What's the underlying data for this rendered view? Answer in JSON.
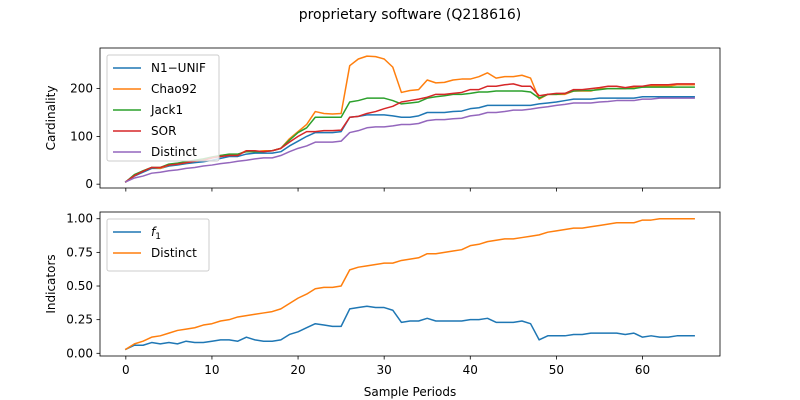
{
  "figure": {
    "title": "proprietary software (Q218616)",
    "xlabel": "Sample Periods"
  },
  "chart_data": [
    {
      "type": "line",
      "ylabel": "Cardinality",
      "xlim": [
        -3,
        69
      ],
      "ylim": [
        -8,
        285
      ],
      "xticks": [
        0,
        10,
        20,
        30,
        40,
        50,
        60
      ],
      "yticks": [
        0,
        100,
        200
      ],
      "ytick_labels": [
        "0",
        "100",
        "200"
      ],
      "show_xtick_labels": false,
      "legend": "upper-left",
      "series": [
        {
          "name": "N1−UNIF",
          "color": "#1f77b4",
          "x": [
            0,
            1,
            2,
            3,
            4,
            5,
            6,
            7,
            8,
            9,
            10,
            11,
            12,
            13,
            14,
            15,
            16,
            17,
            18,
            19,
            20,
            21,
            22,
            23,
            24,
            25,
            26,
            27,
            28,
            29,
            30,
            31,
            32,
            33,
            34,
            35,
            36,
            37,
            38,
            39,
            40,
            41,
            42,
            43,
            44,
            45,
            46,
            47,
            48,
            49,
            50,
            51,
            52,
            53,
            54,
            55,
            56,
            57,
            58,
            59,
            60,
            61,
            62,
            63,
            64,
            65,
            66
          ],
          "y": [
            5,
            17,
            25,
            33,
            33,
            38,
            40,
            43,
            45,
            47,
            50,
            54,
            58,
            58,
            63,
            65,
            65,
            65,
            68,
            80,
            90,
            100,
            108,
            108,
            108,
            110,
            140,
            142,
            145,
            145,
            145,
            143,
            140,
            140,
            143,
            150,
            150,
            150,
            152,
            153,
            158,
            160,
            165,
            165,
            165,
            165,
            165,
            165,
            168,
            170,
            172,
            175,
            178,
            178,
            178,
            180,
            180,
            180,
            180,
            180,
            183,
            183,
            183,
            183,
            183,
            183,
            183
          ]
        },
        {
          "name": "Chao92",
          "color": "#ff7f0e",
          "x": [
            0,
            1,
            2,
            3,
            4,
            5,
            6,
            7,
            8,
            9,
            10,
            11,
            12,
            13,
            14,
            15,
            16,
            17,
            18,
            19,
            20,
            21,
            22,
            23,
            24,
            25,
            26,
            27,
            28,
            29,
            30,
            31,
            32,
            33,
            34,
            35,
            36,
            37,
            38,
            39,
            40,
            41,
            42,
            43,
            44,
            45,
            46,
            47,
            48,
            49,
            50,
            51,
            52,
            53,
            54,
            55,
            56,
            57,
            58,
            59,
            60,
            61,
            62,
            63,
            64,
            65,
            66
          ],
          "y": [
            5,
            18,
            28,
            35,
            33,
            40,
            42,
            45,
            48,
            50,
            55,
            60,
            62,
            62,
            70,
            68,
            70,
            70,
            75,
            95,
            110,
            125,
            152,
            148,
            147,
            148,
            248,
            262,
            268,
            267,
            262,
            245,
            192,
            196,
            198,
            218,
            212,
            213,
            218,
            220,
            220,
            225,
            233,
            222,
            225,
            225,
            228,
            222,
            178,
            188,
            188,
            188,
            195,
            195,
            195,
            200,
            200,
            200,
            200,
            203,
            203,
            205,
            205,
            205,
            208,
            208,
            208
          ]
        },
        {
          "name": "Jack1",
          "color": "#2ca02c",
          "x": [
            0,
            1,
            2,
            3,
            4,
            5,
            6,
            7,
            8,
            9,
            10,
            11,
            12,
            13,
            14,
            15,
            16,
            17,
            18,
            19,
            20,
            21,
            22,
            23,
            24,
            25,
            26,
            27,
            28,
            29,
            30,
            31,
            32,
            33,
            34,
            35,
            36,
            37,
            38,
            39,
            40,
            41,
            42,
            43,
            44,
            45,
            46,
            47,
            48,
            49,
            50,
            51,
            52,
            53,
            54,
            55,
            56,
            57,
            58,
            59,
            60,
            61,
            62,
            63,
            64,
            65,
            66
          ],
          "y": [
            5,
            20,
            28,
            35,
            35,
            42,
            44,
            47,
            50,
            53,
            57,
            60,
            63,
            63,
            68,
            68,
            68,
            70,
            75,
            92,
            108,
            118,
            140,
            140,
            140,
            140,
            172,
            175,
            180,
            180,
            180,
            175,
            168,
            170,
            172,
            180,
            183,
            185,
            188,
            188,
            190,
            193,
            193,
            195,
            195,
            195,
            195,
            193,
            180,
            188,
            188,
            190,
            195,
            196,
            196,
            198,
            200,
            200,
            200,
            200,
            203,
            203,
            203,
            203,
            203,
            203,
            203
          ]
        },
        {
          "name": "SOR",
          "color": "#d62728",
          "x": [
            0,
            1,
            2,
            3,
            4,
            5,
            6,
            7,
            8,
            9,
            10,
            11,
            12,
            13,
            14,
            15,
            16,
            17,
            18,
            19,
            20,
            21,
            22,
            23,
            24,
            25,
            26,
            27,
            28,
            29,
            30,
            31,
            32,
            33,
            34,
            35,
            36,
            37,
            38,
            39,
            40,
            41,
            42,
            43,
            44,
            45,
            46,
            47,
            48,
            49,
            50,
            51,
            52,
            53,
            54,
            55,
            56,
            57,
            58,
            59,
            60,
            61,
            62,
            63,
            64,
            65,
            66
          ],
          "y": [
            5,
            18,
            27,
            35,
            35,
            40,
            42,
            45,
            48,
            50,
            55,
            58,
            60,
            60,
            70,
            70,
            68,
            70,
            75,
            88,
            100,
            110,
            110,
            112,
            112,
            113,
            140,
            142,
            148,
            152,
            158,
            163,
            172,
            175,
            178,
            182,
            188,
            188,
            190,
            192,
            198,
            198,
            205,
            205,
            208,
            210,
            205,
            205,
            185,
            188,
            190,
            190,
            198,
            198,
            200,
            202,
            205,
            205,
            202,
            205,
            205,
            208,
            208,
            208,
            210,
            210,
            210
          ]
        },
        {
          "name": "Distinct",
          "color": "#9467bd",
          "x": [
            0,
            1,
            2,
            3,
            4,
            5,
            6,
            7,
            8,
            9,
            10,
            11,
            12,
            13,
            14,
            15,
            16,
            17,
            18,
            19,
            20,
            21,
            22,
            23,
            24,
            25,
            26,
            27,
            28,
            29,
            30,
            31,
            32,
            33,
            34,
            35,
            36,
            37,
            38,
            39,
            40,
            41,
            42,
            43,
            44,
            45,
            46,
            47,
            48,
            49,
            50,
            51,
            52,
            53,
            54,
            55,
            56,
            57,
            58,
            59,
            60,
            61,
            62,
            63,
            64,
            65,
            66
          ],
          "y": [
            5,
            13,
            17,
            23,
            25,
            28,
            30,
            33,
            35,
            38,
            40,
            43,
            45,
            48,
            50,
            53,
            55,
            55,
            60,
            68,
            75,
            80,
            88,
            88,
            88,
            90,
            108,
            112,
            118,
            120,
            120,
            122,
            125,
            125,
            127,
            133,
            135,
            135,
            137,
            138,
            143,
            145,
            150,
            150,
            152,
            155,
            155,
            157,
            160,
            162,
            165,
            167,
            170,
            170,
            170,
            172,
            173,
            175,
            175,
            175,
            178,
            178,
            180,
            180,
            180,
            180,
            180
          ]
        }
      ]
    },
    {
      "type": "line",
      "ylabel": "Indicators",
      "xlim": [
        -3,
        69
      ],
      "ylim": [
        -0.02,
        1.05
      ],
      "xticks": [
        0,
        10,
        20,
        30,
        40,
        50,
        60
      ],
      "yticks": [
        0.0,
        0.25,
        0.5,
        0.75,
        1.0
      ],
      "xtick_labels": [
        "0",
        "10",
        "20",
        "30",
        "40",
        "50",
        "60"
      ],
      "ytick_labels": [
        "0.00",
        "0.25",
        "0.50",
        "0.75",
        "1.00"
      ],
      "legend": "upper-left",
      "series": [
        {
          "name": "f1",
          "legend_main": "f",
          "legend_sub": "1",
          "color": "#1f77b4",
          "x": [
            0,
            1,
            2,
            3,
            4,
            5,
            6,
            7,
            8,
            9,
            10,
            11,
            12,
            13,
            14,
            15,
            16,
            17,
            18,
            19,
            20,
            21,
            22,
            23,
            24,
            25,
            26,
            27,
            28,
            29,
            30,
            31,
            32,
            33,
            34,
            35,
            36,
            37,
            38,
            39,
            40,
            41,
            42,
            43,
            44,
            45,
            46,
            47,
            48,
            49,
            50,
            51,
            52,
            53,
            54,
            55,
            56,
            57,
            58,
            59,
            60,
            61,
            62,
            63,
            64,
            65,
            66
          ],
          "y": [
            0.03,
            0.06,
            0.06,
            0.08,
            0.07,
            0.08,
            0.07,
            0.09,
            0.08,
            0.08,
            0.09,
            0.1,
            0.1,
            0.09,
            0.12,
            0.1,
            0.09,
            0.09,
            0.1,
            0.14,
            0.16,
            0.19,
            0.22,
            0.21,
            0.2,
            0.2,
            0.33,
            0.34,
            0.35,
            0.34,
            0.34,
            0.32,
            0.23,
            0.24,
            0.24,
            0.26,
            0.24,
            0.24,
            0.24,
            0.24,
            0.25,
            0.25,
            0.26,
            0.23,
            0.23,
            0.23,
            0.24,
            0.22,
            0.1,
            0.13,
            0.13,
            0.13,
            0.14,
            0.14,
            0.15,
            0.15,
            0.15,
            0.15,
            0.14,
            0.15,
            0.12,
            0.13,
            0.12,
            0.12,
            0.13,
            0.13,
            0.13
          ]
        },
        {
          "name": "Distinct",
          "color": "#ff7f0e",
          "x": [
            0,
            1,
            2,
            3,
            4,
            5,
            6,
            7,
            8,
            9,
            10,
            11,
            12,
            13,
            14,
            15,
            16,
            17,
            18,
            19,
            20,
            21,
            22,
            23,
            24,
            25,
            26,
            27,
            28,
            29,
            30,
            31,
            32,
            33,
            34,
            35,
            36,
            37,
            38,
            39,
            40,
            41,
            42,
            43,
            44,
            45,
            46,
            47,
            48,
            49,
            50,
            51,
            52,
            53,
            54,
            55,
            56,
            57,
            58,
            59,
            60,
            61,
            62,
            63,
            64,
            65,
            66
          ],
          "y": [
            0.03,
            0.07,
            0.09,
            0.12,
            0.13,
            0.15,
            0.17,
            0.18,
            0.19,
            0.21,
            0.22,
            0.24,
            0.25,
            0.27,
            0.28,
            0.29,
            0.3,
            0.31,
            0.33,
            0.37,
            0.41,
            0.44,
            0.48,
            0.49,
            0.49,
            0.5,
            0.62,
            0.64,
            0.65,
            0.66,
            0.67,
            0.67,
            0.69,
            0.7,
            0.71,
            0.74,
            0.74,
            0.75,
            0.76,
            0.77,
            0.8,
            0.81,
            0.83,
            0.84,
            0.85,
            0.85,
            0.86,
            0.87,
            0.88,
            0.9,
            0.91,
            0.92,
            0.93,
            0.93,
            0.94,
            0.95,
            0.96,
            0.97,
            0.97,
            0.97,
            0.99,
            0.99,
            1.0,
            1.0,
            1.0,
            1.0,
            1.0
          ]
        }
      ]
    }
  ]
}
